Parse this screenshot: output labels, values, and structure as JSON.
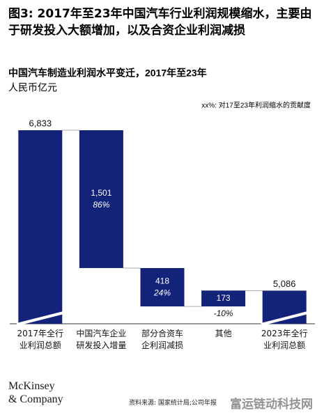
{
  "header": {
    "title": "图3: 2017年至23年中国汽车行业利润规模缩水，主要由于研发投入大额增加，以及合资企业利润减损"
  },
  "chart_data": {
    "type": "waterfall",
    "title": "中国汽车制造业利润水平变迁，2017年至23年",
    "unit_label": "人民币亿元",
    "legend_note": "xx%: 对17至23年利润缩水的贡献度",
    "categories": [
      "2017年全行\n业利润总额",
      "中国汽车企业\n研发投入增量",
      "部分合资车\n企利润减损",
      "其他",
      "2023年全行\n业利润总额"
    ],
    "kinds": [
      "total",
      "decrease",
      "decrease",
      "increase",
      "total"
    ],
    "values": [
      6833,
      1501,
      418,
      173,
      5086
    ],
    "value_labels": [
      "6,833",
      "1,501",
      "418",
      "173",
      "5,086"
    ],
    "shares": [
      null,
      86,
      24,
      -10,
      null
    ],
    "share_labels": [
      null,
      "86%",
      "24%",
      "-10%",
      null
    ],
    "color": "#14237a",
    "ylim": [
      4725,
      7000
    ],
    "axis_break": true
  },
  "footer": {
    "logo": "McKinsey\n& Company",
    "source": "资料来源: 国家统计局;公司年报",
    "watermark": "富运链动科技网"
  }
}
